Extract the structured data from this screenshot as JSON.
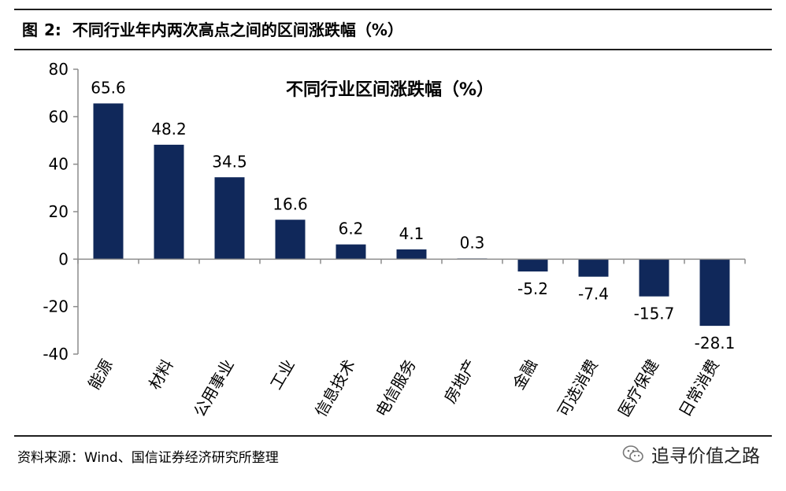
{
  "figure": {
    "label": "图",
    "number": "2:",
    "title": "不同行业年内两次高点之间的区间涨跌幅（%）"
  },
  "source": "资料来源：Wind、国信证券经济研究所整理",
  "watermark": {
    "text": "追寻价值之路",
    "icon": "wechat-icon"
  },
  "colors": {
    "bar": "#10285a",
    "axis": "#8c8c8c"
  },
  "chart_data": {
    "type": "bar",
    "title": "不同行业区间涨跌幅（%）",
    "xlabel": "",
    "ylabel": "",
    "categories": [
      "能源",
      "材料",
      "公用事业",
      "工业",
      "信息技术",
      "电信服务",
      "房地产",
      "金融",
      "可选消费",
      "医疗保健",
      "日常消费"
    ],
    "values": [
      65.6,
      48.2,
      34.5,
      16.6,
      6.2,
      4.1,
      0.3,
      -5.2,
      -7.4,
      -15.7,
      -28.1
    ],
    "data_labels": [
      "65.6",
      "48.2",
      "34.5",
      "16.6",
      "6.2",
      "4.1",
      "0.3",
      "-5.2",
      "-7.4",
      "-15.7",
      "-28.1"
    ],
    "ylim": [
      -40,
      80
    ],
    "yticks": [
      80,
      60,
      40,
      20,
      0,
      -20,
      -40
    ],
    "grid": false,
    "legend": "none"
  }
}
